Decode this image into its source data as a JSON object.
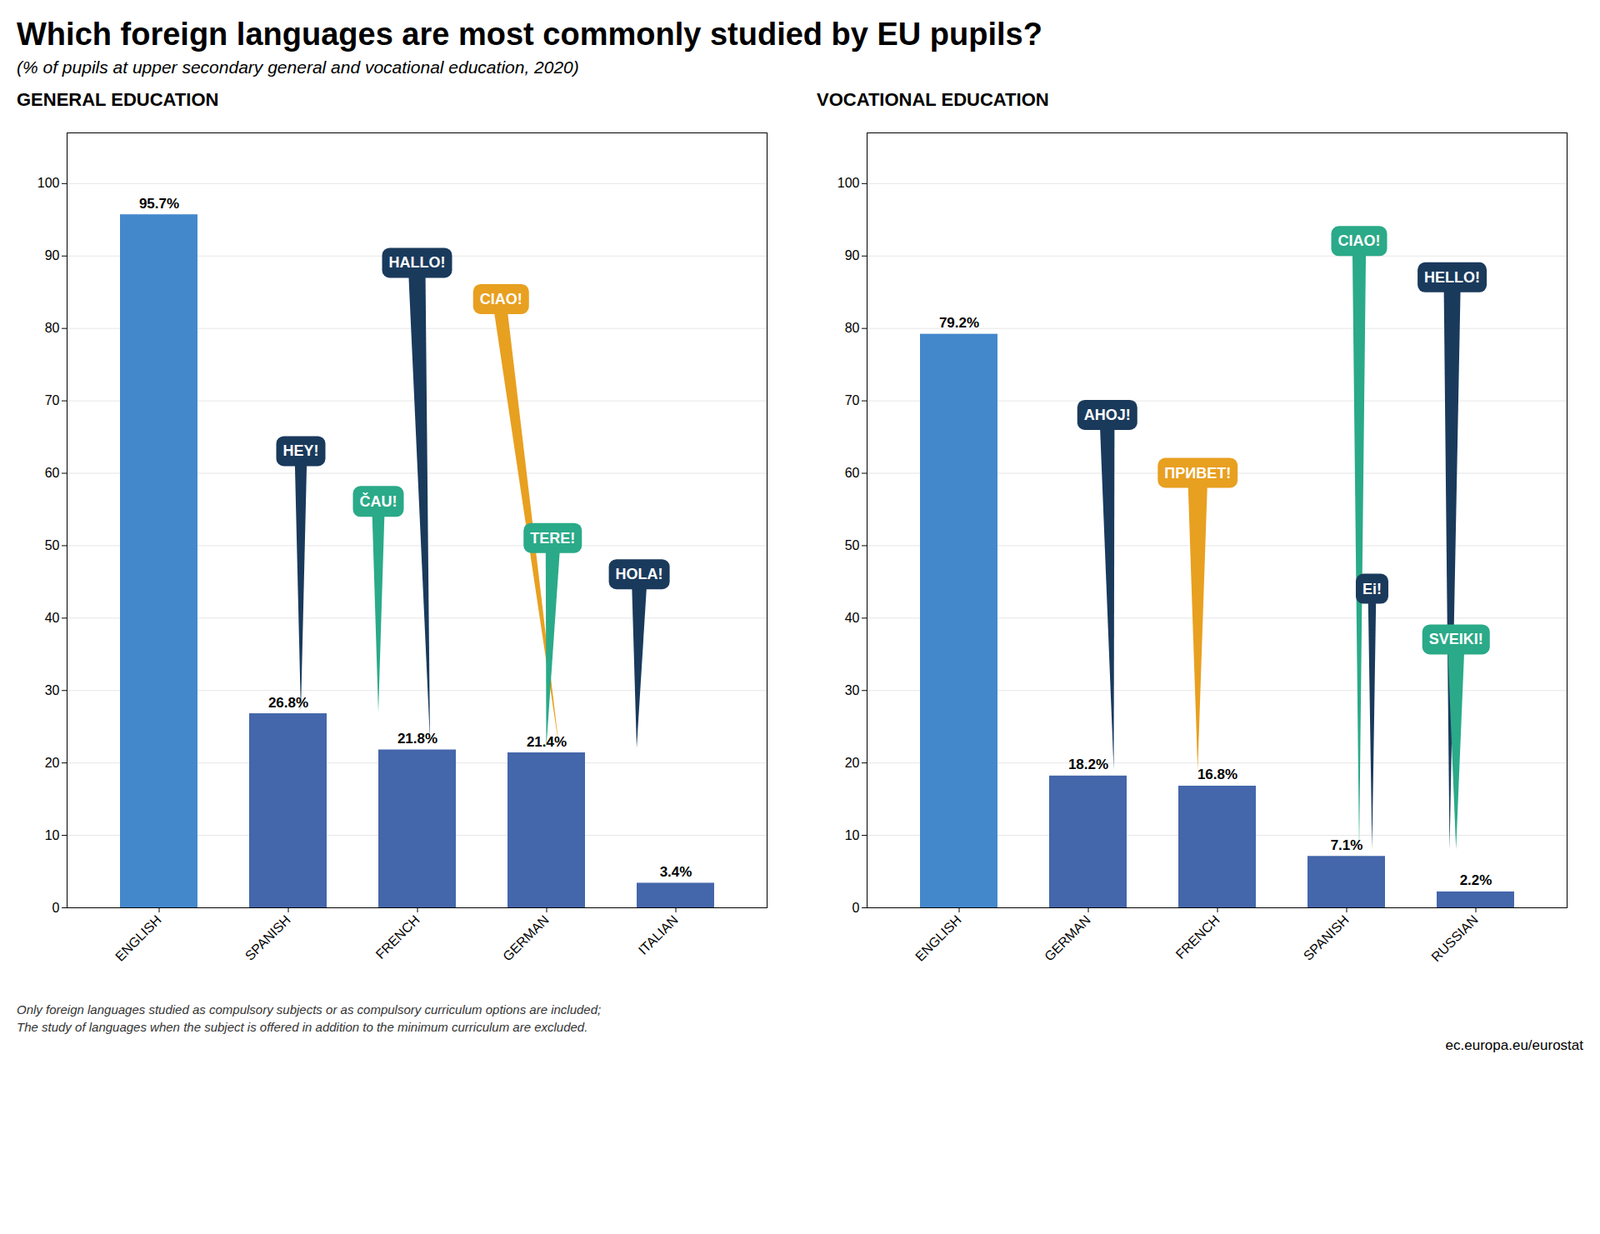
{
  "title": "Which foreign languages are most commonly studied by EU pupils?",
  "subtitle": "(% of pupils at upper secondary general and vocational education, 2020)",
  "notes": [
    "Only foreign languages studied as compulsory subjects or as compulsory curriculum options are included;",
    "The study of languages when the subject is offered in addition to the minimum curriculum are excluded."
  ],
  "source": "ec.europa.eu/eurostat",
  "chart_data": [
    {
      "type": "bar",
      "title": "GENERAL EDUCATION",
      "categories": [
        "ENGLISH",
        "SPANISH",
        "FRENCH",
        "GERMAN",
        "ITALIAN"
      ],
      "values": [
        95.7,
        26.8,
        21.8,
        21.4,
        3.4
      ],
      "value_labels": [
        "95.7%",
        "26.8%",
        "21.8%",
        "21.4%",
        "3.4%"
      ],
      "data_labels": true,
      "colors": [
        "#4488cc",
        "#4466aa",
        "#4466aa",
        "#4466aa",
        "#4466aa"
      ],
      "ylim": [
        0,
        107
      ],
      "yticks": [
        0,
        10,
        20,
        30,
        40,
        50,
        60,
        70,
        80,
        90,
        100
      ],
      "grid": true,
      "annotations": [
        {
          "text": "HALLO!",
          "color": "#1a3a5c"
        },
        {
          "text": "CIAO!",
          "color": "#e8a020"
        },
        {
          "text": "HEY!",
          "color": "#1a3a5c"
        },
        {
          "text": "ČAU!",
          "color": "#2aaa88"
        },
        {
          "text": "TERE!",
          "color": "#2aaa88"
        },
        {
          "text": "HOLA!",
          "color": "#1a3a5c"
        }
      ]
    },
    {
      "type": "bar",
      "title": "VOCATIONAL EDUCATION",
      "categories": [
        "ENGLISH",
        "GERMAN",
        "FRENCH",
        "SPANISH",
        "RUSSIAN"
      ],
      "values": [
        79.2,
        18.2,
        16.8,
        7.1,
        2.2
      ],
      "value_labels": [
        "79.2%",
        "18.2%",
        "16.8%",
        "7.1%",
        "2.2%"
      ],
      "data_labels": true,
      "colors": [
        "#4488cc",
        "#4466aa",
        "#4466aa",
        "#4466aa",
        "#4466aa"
      ],
      "ylim": [
        0,
        107
      ],
      "yticks": [
        0,
        10,
        20,
        30,
        40,
        50,
        60,
        70,
        80,
        90,
        100
      ],
      "grid": true,
      "annotations": [
        {
          "text": "AHOJ!",
          "color": "#1a3a5c"
        },
        {
          "text": "ПРИВЕТ!",
          "color": "#e8a020"
        },
        {
          "text": "CIAO!",
          "color": "#2aaa88"
        },
        {
          "text": "HELLO!",
          "color": "#1a3a5c"
        },
        {
          "text": "Ei!",
          "color": "#1a3a5c"
        },
        {
          "text": "SVEIKI!",
          "color": "#2aaa88"
        }
      ]
    }
  ]
}
